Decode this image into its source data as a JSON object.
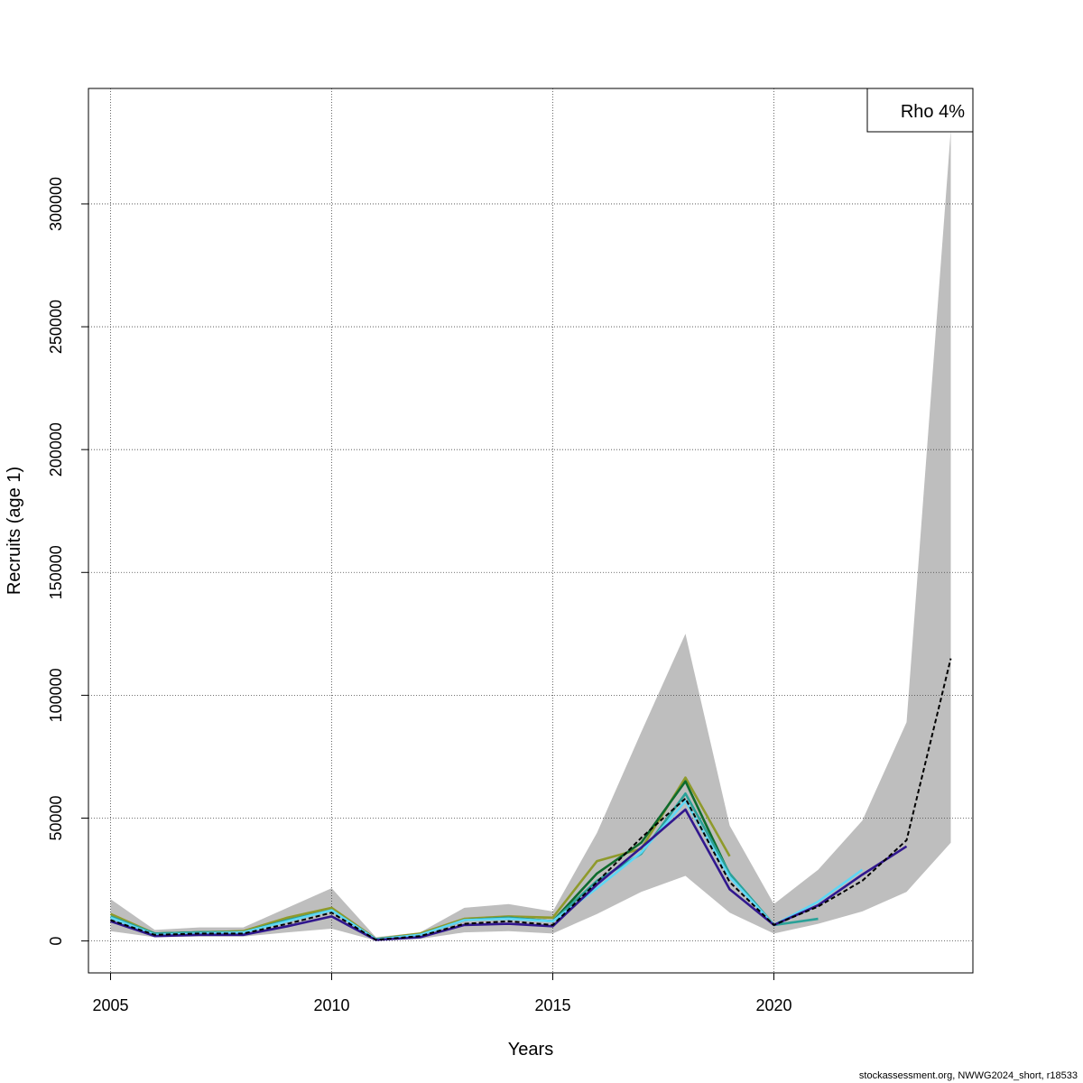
{
  "footer": "stockassessment.org, NWWG2024_short, r18533",
  "chart_data": {
    "type": "line",
    "xlabel": "Years",
    "ylabel": "Recruits (age 1)",
    "xlim": [
      2004.5,
      2024.5
    ],
    "ylim": [
      -13000,
      347000
    ],
    "x_ticks": [
      2005,
      2010,
      2015,
      2020
    ],
    "y_ticks": [
      0,
      50000,
      100000,
      150000,
      200000,
      250000,
      300000
    ],
    "grid": true,
    "legend": {
      "position": "top-right",
      "text": "Rho 4%"
    },
    "confidence_band": {
      "color": "#bebebe",
      "x": [
        2005,
        2006,
        2007,
        2008,
        2009,
        2010,
        2011,
        2012,
        2013,
        2014,
        2015,
        2016,
        2017,
        2018,
        2019,
        2020,
        2021,
        2022,
        2023,
        2024
      ],
      "lower": [
        4000,
        1500,
        1800,
        1800,
        3500,
        5000,
        200,
        800,
        3500,
        4000,
        3000,
        11000,
        20000,
        26500,
        11500,
        3000,
        7000,
        12000,
        20000,
        40000
      ],
      "upper": [
        17000,
        4500,
        5500,
        5500,
        13500,
        21500,
        1500,
        3500,
        13500,
        15000,
        12000,
        44000,
        85000,
        125000,
        47000,
        15000,
        29000,
        49000,
        89000,
        330000
      ]
    },
    "series": [
      {
        "color": "#000000",
        "dashed": true,
        "x": [
          2005,
          2006,
          2007,
          2008,
          2009,
          2010,
          2011,
          2012,
          2013,
          2014,
          2015,
          2016,
          2017,
          2018,
          2019,
          2020,
          2021,
          2022,
          2023,
          2024
        ],
        "values": [
          8500,
          2500,
          3000,
          3000,
          7000,
          11500,
          500,
          2000,
          7000,
          8000,
          6500,
          24000,
          42000,
          58000,
          24000,
          6500,
          14000,
          24500,
          41000,
          115000
        ]
      },
      {
        "color": "#31178e",
        "x": [
          2005,
          2006,
          2007,
          2008,
          2009,
          2010,
          2011,
          2012,
          2013,
          2014,
          2015,
          2016,
          2017,
          2018,
          2019,
          2020,
          2021,
          2022,
          2023
        ],
        "values": [
          8000,
          2000,
          2500,
          2500,
          6000,
          10000,
          400,
          1500,
          6500,
          7000,
          6000,
          23000,
          38000,
          53500,
          21000,
          6500,
          14500,
          27000,
          38500
        ]
      },
      {
        "color": "#5fd7f5",
        "x": [
          2005,
          2006,
          2007,
          2008,
          2009,
          2010,
          2011,
          2012,
          2013,
          2014,
          2015,
          2016,
          2017,
          2018,
          2019,
          2020,
          2021,
          2022
        ],
        "values": [
          9500,
          2500,
          3000,
          3500,
          8000,
          12500,
          600,
          2500,
          8500,
          9000,
          8000,
          21500,
          36000,
          57000,
          26000,
          6500,
          16000,
          29000
        ]
      },
      {
        "color": "#2aa198",
        "x": [
          2005,
          2006,
          2007,
          2008,
          2009,
          2010,
          2011,
          2012,
          2013,
          2014,
          2015,
          2016,
          2017,
          2018,
          2019,
          2020,
          2021
        ],
        "values": [
          10000,
          3000,
          3500,
          3500,
          8500,
          12500,
          700,
          2500,
          8500,
          9500,
          8000,
          24500,
          35500,
          60000,
          27500,
          6500,
          9000
        ]
      },
      {
        "color": "#0e6b2d",
        "x": [
          2005,
          2006,
          2007,
          2008,
          2009,
          2010,
          2011,
          2012,
          2013,
          2014,
          2015,
          2016,
          2017,
          2018,
          2019,
          2020
        ],
        "values": [
          9500,
          3000,
          3500,
          3500,
          8500,
          12500,
          700,
          2500,
          8500,
          9500,
          8000,
          27500,
          40000,
          65000,
          27000,
          6500
        ]
      },
      {
        "color": "#8f9a2b",
        "x": [
          2005,
          2006,
          2007,
          2008,
          2009,
          2010,
          2011,
          2012,
          2013,
          2014,
          2015,
          2016,
          2017,
          2018,
          2019
        ],
        "values": [
          11000,
          3000,
          3500,
          4000,
          9500,
          13500,
          800,
          3000,
          9000,
          10000,
          9500,
          32500,
          37500,
          66500,
          34500
        ]
      }
    ]
  }
}
